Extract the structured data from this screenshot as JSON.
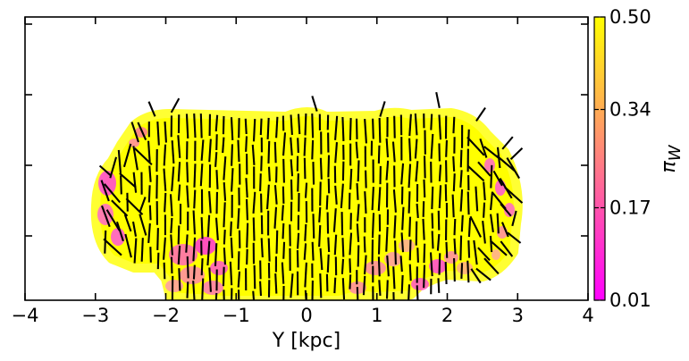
{
  "chart_data": {
    "type": "heatmap",
    "title": "",
    "xlabel": "Y [kpc]",
    "ylabel": "",
    "xlim": [
      -4,
      4
    ],
    "xticks": [
      "−4",
      "−3",
      "−2",
      "−1",
      "0",
      "1",
      "2",
      "3",
      "4"
    ],
    "yticks_labeled": false,
    "grid": false,
    "colorbar": {
      "label": "π_W",
      "label_base": "π",
      "label_sub": "W",
      "min": 0.01,
      "max": 0.5,
      "ticks": [
        "0.01",
        "0.17",
        "0.34",
        "0.50"
      ],
      "tick_values": [
        0.01,
        0.17,
        0.34,
        0.5
      ],
      "colormap": "spring",
      "color_low": "#ff00ff",
      "color_high": "#ffff00"
    },
    "field": {
      "description_value_range": [
        0.01,
        0.5
      ],
      "interior_value": 0.5,
      "edge_value_min": 0.1,
      "x_extent": [
        -3.0,
        3.0
      ],
      "vector_overlay": "polarization angle segments (mostly vertical)"
    },
    "vector_color": "#000000"
  }
}
